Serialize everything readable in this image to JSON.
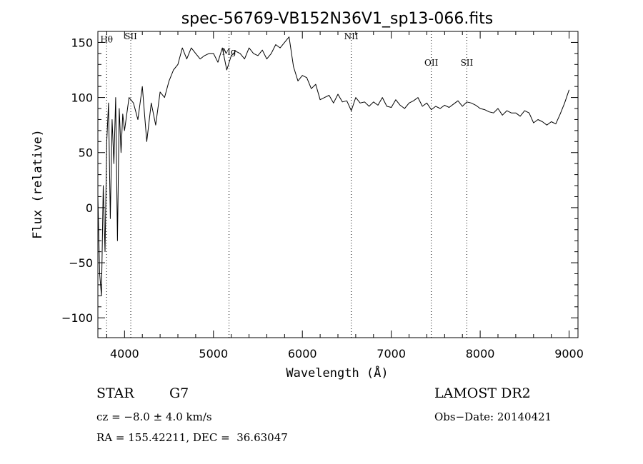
{
  "chart_data": {
    "type": "line",
    "title": "spec-56769-VB152N36V1_sp13-066.fits",
    "xlabel": "Wavelength (Å)",
    "ylabel": "Flux (relative)",
    "xlim": [
      3700,
      9100
    ],
    "ylim": [
      -118,
      160
    ],
    "x_ticks": [
      4000,
      5000,
      6000,
      7000,
      8000,
      9000
    ],
    "x_tick_labels": [
      "4000",
      "5000",
      "6000",
      "7000",
      "8000",
      "9000"
    ],
    "y_ticks": [
      -100,
      -50,
      0,
      50,
      100,
      150
    ],
    "y_tick_labels": [
      "−100",
      "−50",
      "0",
      "50",
      "100",
      "150"
    ],
    "grid": false,
    "line_markers": [
      {
        "label": "Hθ",
        "x": 3798,
        "label_y": 150
      },
      {
        "label": "SII",
        "x": 4070,
        "label_y": 153
      },
      {
        "label": "Mg",
        "x": 5175,
        "label_y": 139
      },
      {
        "label": "NII",
        "x": 6550,
        "label_y": 153
      },
      {
        "label": "OII",
        "x": 7450,
        "label_y": 129
      },
      {
        "label": "SII",
        "x": 7850,
        "label_y": 129
      }
    ],
    "series": [
      {
        "x": [
          3700,
          3720,
          3740,
          3760,
          3780,
          3800,
          3820,
          3840,
          3860,
          3880,
          3900,
          3920,
          3940,
          3960,
          3980,
          4000,
          4050,
          4100,
          4150,
          4200,
          4250,
          4300,
          4350,
          4400,
          4450,
          4500,
          4550,
          4600,
          4650,
          4700,
          4750,
          4800,
          4850,
          4900,
          4950,
          5000,
          5050,
          5100,
          5150,
          5200,
          5250,
          5300,
          5350,
          5400,
          5450,
          5500,
          5550,
          5600,
          5650,
          5700,
          5750,
          5800,
          5850,
          5900,
          5950,
          6000,
          6050,
          6100,
          6150,
          6200,
          6250,
          6300,
          6350,
          6400,
          6450,
          6500,
          6550,
          6600,
          6650,
          6700,
          6750,
          6800,
          6850,
          6900,
          6950,
          7000,
          7050,
          7100,
          7150,
          7200,
          7250,
          7300,
          7350,
          7400,
          7450,
          7500,
          7550,
          7600,
          7650,
          7700,
          7750,
          7800,
          7850,
          7900,
          7950,
          8000,
          8050,
          8100,
          8150,
          8200,
          8250,
          8300,
          8350,
          8400,
          8450,
          8500,
          8550,
          8600,
          8650,
          8700,
          8750,
          8800,
          8850,
          8900,
          8950,
          9000
        ],
        "values": [
          10,
          -60,
          -80,
          20,
          -40,
          60,
          95,
          -10,
          80,
          40,
          100,
          -30,
          90,
          50,
          85,
          70,
          100,
          95,
          80,
          110,
          60,
          95,
          75,
          105,
          100,
          115,
          125,
          130,
          145,
          135,
          145,
          140,
          135,
          138,
          140,
          140,
          132,
          145,
          125,
          138,
          142,
          140,
          135,
          145,
          140,
          138,
          143,
          135,
          140,
          148,
          145,
          150,
          155,
          128,
          115,
          120,
          118,
          108,
          112,
          98,
          100,
          102,
          95,
          103,
          96,
          97,
          88,
          100,
          95,
          96,
          92,
          96,
          93,
          100,
          92,
          91,
          98,
          93,
          90,
          95,
          97,
          100,
          92,
          95,
          89,
          92,
          90,
          93,
          91,
          94,
          97,
          92,
          96,
          95,
          93,
          90,
          89,
          87,
          86,
          90,
          84,
          88,
          86,
          86,
          83,
          88,
          86,
          77,
          80,
          78,
          75,
          78,
          76,
          85,
          95,
          107
        ]
      }
    ]
  },
  "info": {
    "object_class": "STAR",
    "subclass": "G7",
    "survey": "LAMOST DR2",
    "velocity": "cz = −8.0 ± 4.0 km/s",
    "obs_date": "Obs−Date: 20140421",
    "coords": "RA = 155.42211, DEC =  36.63047"
  }
}
